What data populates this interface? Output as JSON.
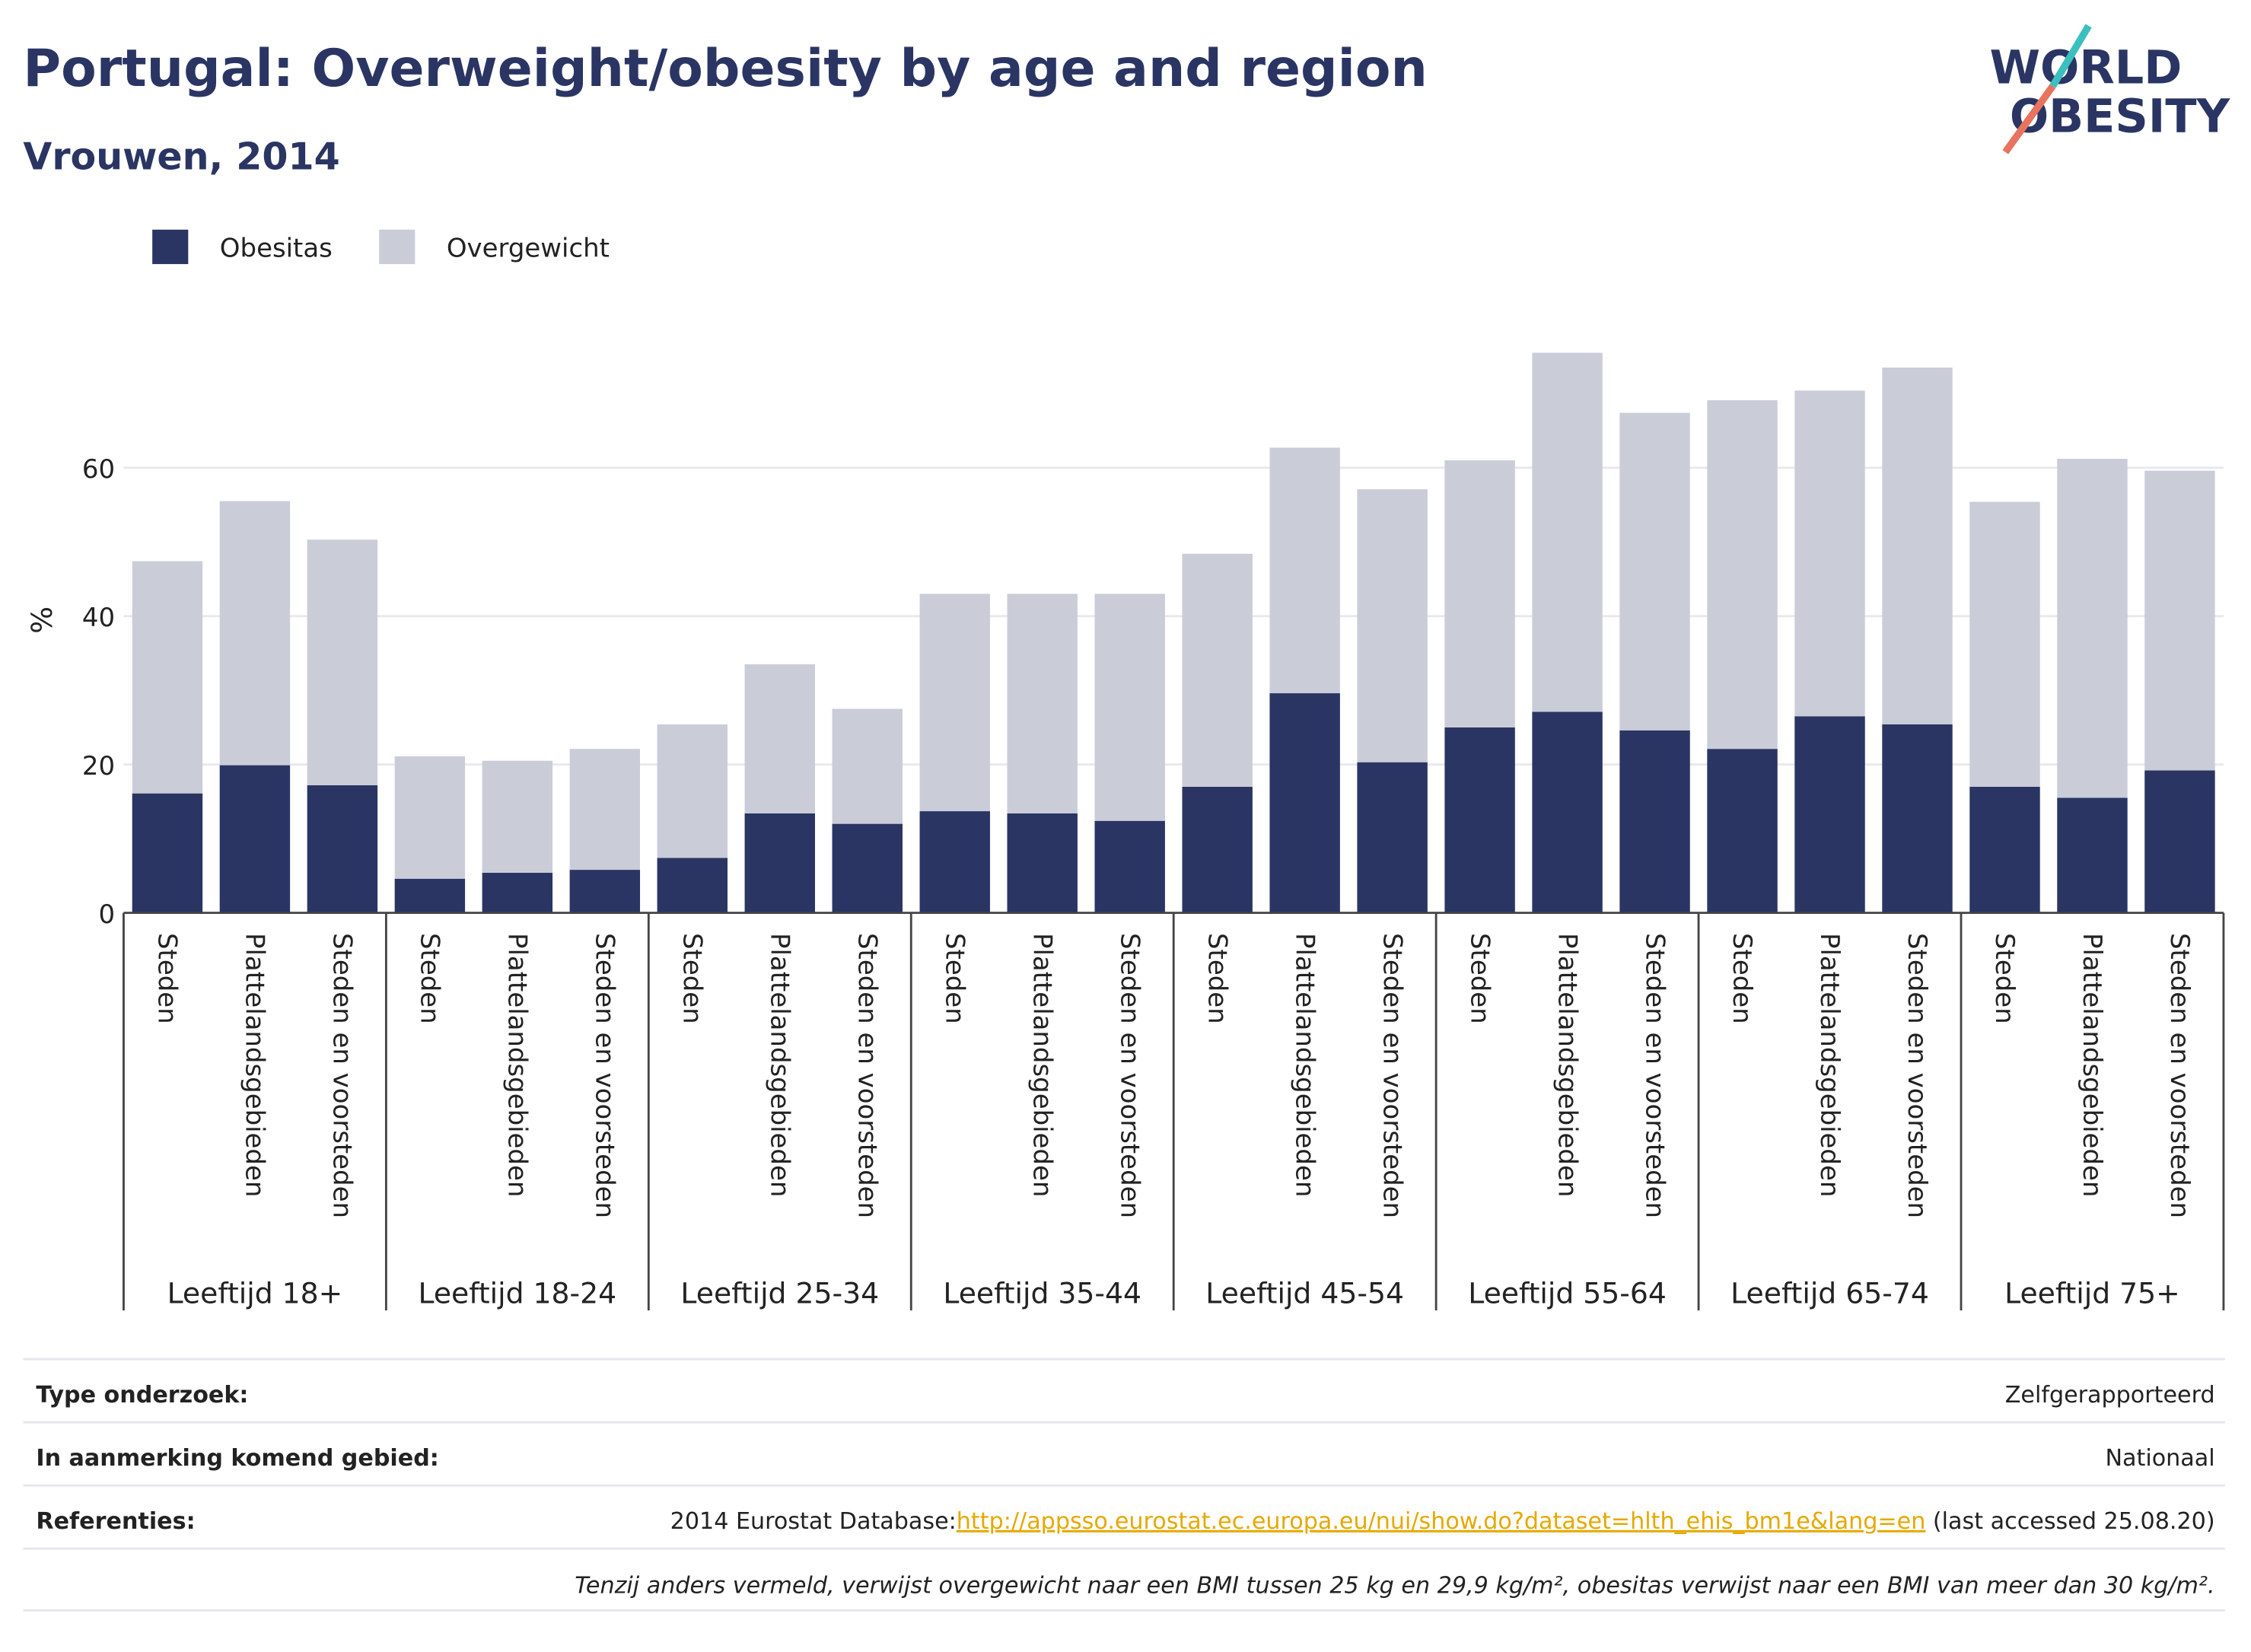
{
  "chart_data": {
    "type": "stacked_bar",
    "title": "Portugal: Overweight/obesity by age and region",
    "subtitle": "Vrouwen, 2014",
    "y_label": "%",
    "logo": [
      "WORLD",
      "OBESITY"
    ],
    "categories": [
      "Steden",
      "Plattelandsgebieden",
      "Steden en voorsteden",
      "Steden",
      "Plattelandsgebieden",
      "Steden en voorsteden",
      "Steden",
      "Plattelandsgebieden",
      "Steden en voorsteden",
      "Steden",
      "Plattelandsgebieden",
      "Steden en voorsteden",
      "Steden",
      "Plattelandsgebieden",
      "Steden en voorsteden",
      "Steden",
      "Plattelandsgebieden",
      "Steden en voorsteden",
      "Steden",
      "Plattelandsgebieden",
      "Steden en voorsteden",
      "Steden",
      "Plattelandsgebieden",
      "Steden en voorsteden"
    ],
    "groups": [
      "Leeftijd 18+",
      "Leeftijd 18-24",
      "Leeftijd 25-34",
      "Leeftijd 35-44",
      "Leeftijd 45-54",
      "Leeftijd 55-64",
      "Leeftijd 65-74",
      "Leeftijd 75+"
    ],
    "series": [
      {
        "name": "Obesitas",
        "color": "#2a3563",
        "values": [
          16.1,
          19.9,
          17.2,
          4.6,
          5.4,
          5.8,
          7.4,
          13.4,
          12.0,
          13.7,
          13.4,
          12.4,
          17.0,
          29.6,
          20.3,
          25.0,
          27.1,
          24.6,
          22.1,
          26.5,
          25.4,
          17.0,
          15.5,
          19.2
        ]
      },
      {
        "name": "Overgewicht",
        "color": "#cacdd8",
        "values": [
          31.3,
          35.6,
          33.1,
          16.5,
          15.1,
          16.3,
          18.0,
          20.1,
          15.5,
          29.3,
          29.6,
          30.6,
          31.4,
          33.1,
          36.8,
          36.0,
          48.4,
          42.8,
          47.0,
          43.9,
          48.1,
          38.4,
          45.7,
          40.4
        ]
      }
    ],
    "ylim": [
      0,
      83
    ],
    "yticks": [
      0,
      20,
      40,
      60
    ],
    "grid": true,
    "legend": "top-left"
  },
  "footer": {
    "rows": [
      {
        "key": "Type onderzoek:",
        "value": [
          "Zelfgerapporteerd"
        ]
      },
      {
        "key": "In aanmerking komend gebied:",
        "value": [
          "Nationaal"
        ]
      },
      {
        "key": "Referenties:",
        "value": [
          "2014 Eurostat Database:",
          "http://appsso.eurostat.ec.europa.eu/nui/show.do?dataset=hlth_ehis_bm1e&lang=en",
          " (last accessed 25.08.20)"
        ]
      }
    ],
    "note": "Tenzij anders vermeld, verwijst overgewicht naar een BMI tussen 25 kg en 29,9 kg/m², obesitas verwijst naar een BMI van meer dan 30 kg/m²."
  }
}
